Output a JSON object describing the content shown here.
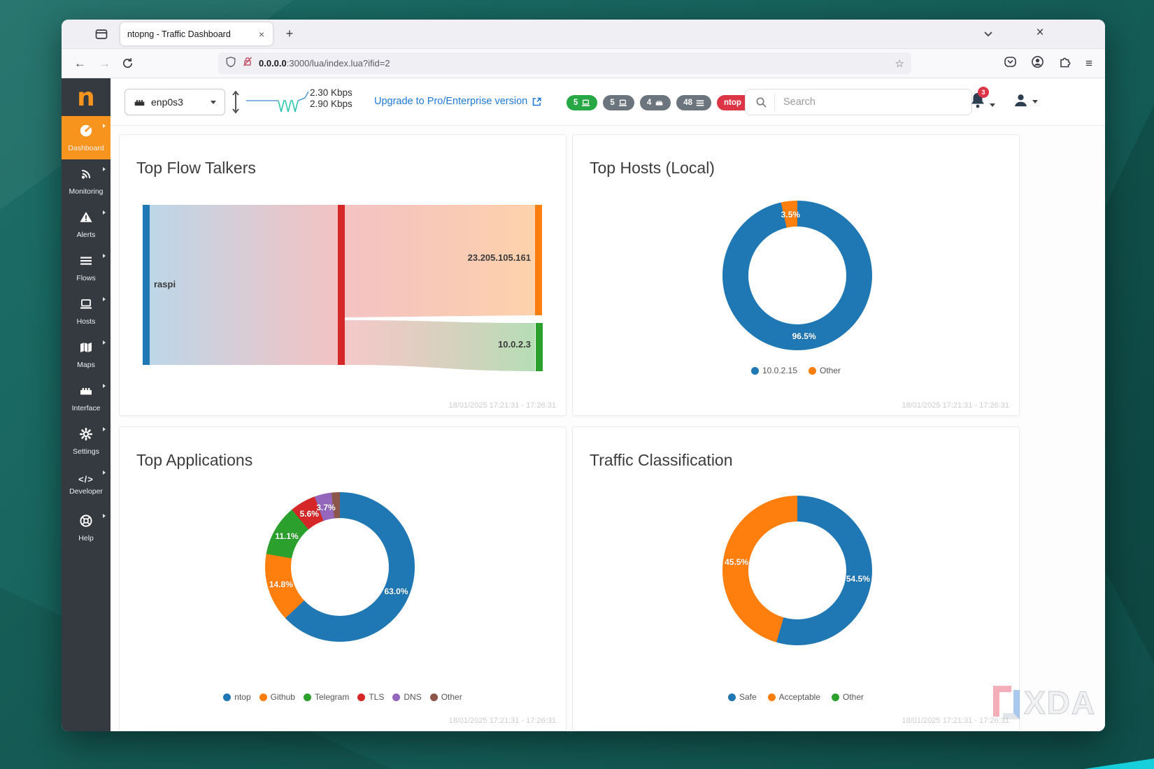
{
  "browser": {
    "tab_title": "ntopng - Traffic Dashboard",
    "url_host": "0.0.0.0",
    "url_rest": ":3000/lua/index.lua?ifid=2"
  },
  "icons": {
    "close": "×",
    "plus": "+",
    "back": "←",
    "forward": "→",
    "star": "☆",
    "menu": "≡"
  },
  "header": {
    "interface_select": "enp0s3",
    "rate_up": "2.30 Kbps",
    "rate_down": "2.90 Kbps",
    "upgrade_link": "Upgrade to Pro/Enterprise version",
    "badges": [
      {
        "label": "5",
        "icon": "laptop-icon",
        "color": "#28a745"
      },
      {
        "label": "5",
        "icon": "laptop-icon",
        "color": "#6c757d"
      },
      {
        "label": "4",
        "icon": "interface-icon",
        "color": "#6c757d"
      },
      {
        "label": "48",
        "icon": "list-icon",
        "color": "#6c757d"
      },
      {
        "label": "ntop",
        "icon": "cloud-icon",
        "color": "#dc3545"
      }
    ],
    "search_placeholder": "Search",
    "notification_count": "3"
  },
  "sidebar": {
    "logo": "n",
    "items": [
      {
        "label": "Dashboard",
        "active": true
      },
      {
        "label": "Monitoring",
        "active": false
      },
      {
        "label": "Alerts",
        "active": false
      },
      {
        "label": "Flows",
        "active": false
      },
      {
        "label": "Hosts",
        "active": false
      },
      {
        "label": "Maps",
        "active": false
      },
      {
        "label": "Interface",
        "active": false
      },
      {
        "label": "Settings",
        "active": false
      },
      {
        "label": "Developer",
        "active": false
      },
      {
        "label": "Help",
        "active": false
      }
    ]
  },
  "cards": [
    {
      "title": "Top Flow Talkers",
      "timestamp": "18/01/2025 17:21:31 - 17:26:31"
    },
    {
      "title": "Top Hosts (Local)",
      "timestamp": "18/01/2025 17:21:31 - 17:26:31"
    },
    {
      "title": "Top Applications",
      "timestamp": "18/01/2025 17:21:31 - 17:26:31"
    },
    {
      "title": "Traffic Classification",
      "timestamp": "18/01/2025 17:21:31 - 17:26:31"
    }
  ],
  "chart_data": [
    {
      "type": "sankey",
      "title": "Top Flow Talkers",
      "nodes": {
        "source": "raspi",
        "targets": [
          "23.205.105.161",
          "10.0.2.3"
        ]
      },
      "node_colors": {
        "source": "#1f77b4",
        "center": "#d62728",
        "target1": "#ff7f0e",
        "target2": "#2ca02c"
      },
      "link_shares": [
        0.69,
        0.31
      ]
    },
    {
      "type": "donut",
      "title": "Top Hosts (Local)",
      "slices": [
        {
          "label": "10.0.2.15",
          "value": 96.5,
          "color": "#1f77b4"
        },
        {
          "label": "Other",
          "value": 3.5,
          "color": "#ff7f0e"
        }
      ]
    },
    {
      "type": "donut",
      "title": "Top Applications",
      "slices": [
        {
          "label": "ntop",
          "value": 63.0,
          "color": "#1f77b4"
        },
        {
          "label": "Github",
          "value": 14.8,
          "color": "#ff7f0e"
        },
        {
          "label": "Telegram",
          "value": 11.1,
          "color": "#2ca02c"
        },
        {
          "label": "TLS",
          "value": 5.6,
          "color": "#d62728"
        },
        {
          "label": "DNS",
          "value": 3.7,
          "color": "#9467bd"
        },
        {
          "label": "Other",
          "value": 1.8,
          "color": "#8c564b"
        }
      ]
    },
    {
      "type": "donut",
      "title": "Traffic Classification",
      "slices": [
        {
          "label": "Safe",
          "value": 54.5,
          "color": "#1f77b4"
        },
        {
          "label": "Acceptable",
          "value": 45.5,
          "color": "#ff7f0e"
        },
        {
          "label": "Other",
          "value": 0,
          "color": "#2ca02c"
        }
      ]
    }
  ],
  "colors": {
    "brand_orange": "#f7941e",
    "sidebar_bg": "#343a40",
    "link_blue": "#2079d8",
    "desktop_teal": "#16605a"
  },
  "watermark": {
    "text": "XDA"
  }
}
